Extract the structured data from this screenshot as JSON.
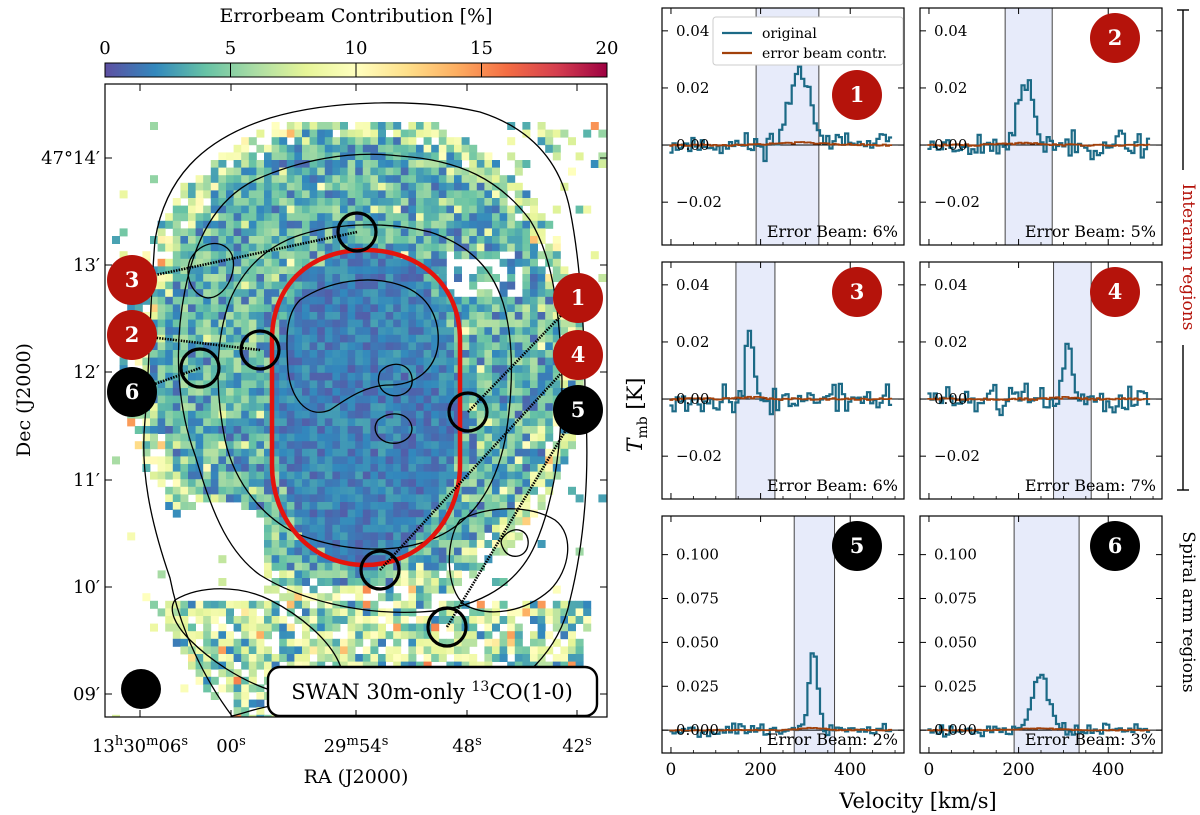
{
  "chart_data": [
    {
      "type": "heatmap",
      "title": "SWAN 30m-only 13CO(1-0)",
      "label_main": "SWAN 30m-only ",
      "label_sup": "13",
      "label_tail": "CO(1-0)",
      "colorbar": {
        "label": "Errorbeam Contribution [%]",
        "range": [
          0,
          20
        ],
        "ticks": [
          "0",
          "5",
          "10",
          "15",
          "20"
        ],
        "colormap": [
          "#5e4fa2",
          "#3288bd",
          "#66c2a5",
          "#abdda4",
          "#e6f598",
          "#ffffbf",
          "#fee08b",
          "#fdae61",
          "#f46d43",
          "#d53e4f",
          "#9e0142"
        ]
      },
      "xlabel": "RA (J2000)",
      "ylabel": "Dec (J2000)",
      "xticks": [
        {
          "main": "13",
          "sup1": "h",
          "mid": "30",
          "sup2": "m",
          "end": "06",
          "sup3": "s"
        },
        {
          "main": "00",
          "sup1": "s"
        },
        {
          "main": "29",
          "sup1": "m",
          "mid": "54",
          "sup2": "s"
        },
        {
          "main": "48",
          "sup1": "s"
        },
        {
          "main": "42",
          "sup1": "s"
        }
      ],
      "yticks": [
        {
          "main": "47°14",
          "prime": "′"
        },
        {
          "main": "13",
          "prime": "′"
        },
        {
          "main": "12",
          "prime": "′"
        },
        {
          "main": "11",
          "prime": "′"
        },
        {
          "main": "10",
          "prime": "′"
        },
        {
          "main": "09",
          "prime": "′"
        }
      ],
      "regions": [
        {
          "id": "1",
          "kind": "interarm",
          "fill": "#b5130b"
        },
        {
          "id": "2",
          "kind": "interarm",
          "fill": "#b5130b"
        },
        {
          "id": "3",
          "kind": "interarm",
          "fill": "#b5130b"
        },
        {
          "id": "4",
          "kind": "interarm",
          "fill": "#b5130b"
        },
        {
          "id": "5",
          "kind": "spiral",
          "fill": "#000000"
        },
        {
          "id": "6",
          "kind": "spiral",
          "fill": "#000000"
        }
      ]
    },
    {
      "type": "line",
      "xlabel": "Velocity [km/s]",
      "ylabel_main": "T",
      "ylabel_sub": "mb",
      "ylabel_unit": " [K]",
      "xlim": [
        -20,
        520
      ],
      "xticks": [
        0,
        200,
        400
      ],
      "legend": {
        "entries": [
          "original",
          "error beam contr."
        ],
        "position": "top"
      },
      "series_colors": {
        "original": "#1c6a86",
        "error beam contr.": "#a2410b"
      },
      "side_labels": {
        "interarm": "Interarm regions",
        "spiral": "Spiral arm regions"
      },
      "panels": [
        {
          "region": "1",
          "badge_color": "#b5130b",
          "ylim": [
            -0.035,
            0.048
          ],
          "yticks": [
            "0.04",
            "0.02",
            "0.00",
            "−0.02"
          ],
          "ytick_values": [
            0.04,
            0.02,
            0.0,
            -0.02
          ],
          "window": [
            190,
            330
          ],
          "peak_center": 290,
          "peak_amp": 0.026,
          "peak_width": 25,
          "noise": 0.003,
          "seed": 11,
          "error_beam_label": "Error Beam: 6%"
        },
        {
          "region": "2",
          "badge_color": "#b5130b",
          "ylim": [
            -0.035,
            0.048
          ],
          "yticks": [
            "0.04",
            "0.02",
            "0.00",
            "−0.02"
          ],
          "ytick_values": [
            0.04,
            0.02,
            0.0,
            -0.02
          ],
          "window": [
            170,
            275
          ],
          "peak_center": 215,
          "peak_amp": 0.021,
          "peak_width": 17,
          "noise": 0.003,
          "seed": 23,
          "error_beam_label": "Error Beam: 5%"
        },
        {
          "region": "3",
          "badge_color": "#b5130b",
          "ylim": [
            -0.035,
            0.048
          ],
          "yticks": [
            "0.04",
            "0.02",
            "0.00",
            "−0.02"
          ],
          "ytick_values": [
            0.04,
            0.02,
            0.0,
            -0.02
          ],
          "window": [
            145,
            232
          ],
          "peak_center": 175,
          "peak_amp": 0.021,
          "peak_width": 9,
          "noise": 0.0035,
          "seed": 37,
          "error_beam_label": "Error Beam: 6%"
        },
        {
          "region": "4",
          "badge_color": "#b5130b",
          "ylim": [
            -0.035,
            0.048
          ],
          "yticks": [
            "0.04",
            "0.02",
            "0.00",
            "−0.02"
          ],
          "ytick_values": [
            0.04,
            0.02,
            0.0,
            -0.02
          ],
          "window": [
            278,
            362
          ],
          "peak_center": 310,
          "peak_amp": 0.018,
          "peak_width": 9,
          "noise": 0.0035,
          "seed": 51,
          "error_beam_label": "Error Beam: 7%"
        },
        {
          "region": "5",
          "badge_color": "#000000",
          "ylim": [
            -0.013,
            0.122
          ],
          "yticks": [
            "0.100",
            "0.075",
            "0.050",
            "0.025",
            "0.000"
          ],
          "ytick_values": [
            0.1,
            0.075,
            0.05,
            0.025,
            0.0
          ],
          "window": [
            275,
            365
          ],
          "peak_center": 318,
          "peak_amp": 0.045,
          "peak_width": 10,
          "noise": 0.0025,
          "seed": 67,
          "error_beam_label": "Error Beam: 2%"
        },
        {
          "region": "6",
          "badge_color": "#000000",
          "ylim": [
            -0.013,
            0.122
          ],
          "yticks": [
            "0.100",
            "0.075",
            "0.050",
            "0.025",
            "0.000"
          ],
          "ytick_values": [
            0.1,
            0.075,
            0.05,
            0.025,
            0.0
          ],
          "window": [
            190,
            335
          ],
          "peak_center": 248,
          "peak_amp": 0.033,
          "peak_width": 18,
          "noise": 0.0025,
          "seed": 79,
          "error_beam_label": "Error Beam: 3%"
        }
      ]
    }
  ]
}
